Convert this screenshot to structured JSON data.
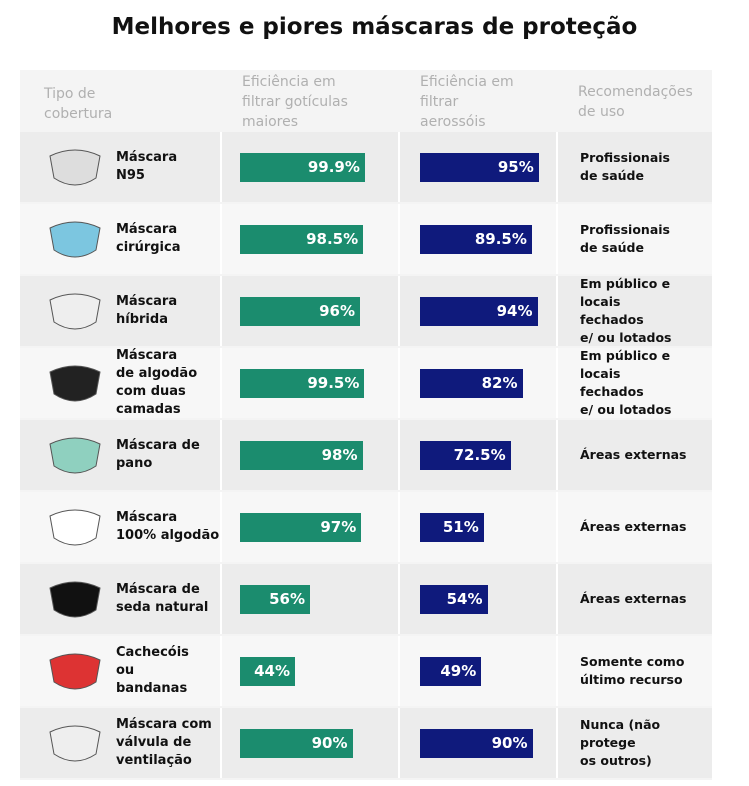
{
  "title": "Melhores e piores máscaras de proteção",
  "headers": [
    "Tipo de\ncobertura",
    "Eficiência em\nfiltrar gotículas\nmaiores",
    "Eficiência em\nfiltrar\naerossóis",
    "Recomendações\nde uso"
  ],
  "masks": [
    "Máscara\nN95",
    "Máscara\ncirúrgica",
    "Máscara\nhíbrida",
    "Máscara\nde algodão\ncom duas\ncamadas",
    "Máscara de pano",
    "Máscara\n100% algodão",
    "Máscara de\nseda natural",
    "Cachecóis\nou\nbandanas",
    "Máscara com\nválvula de\nventilação"
  ],
  "droplets": {
    "color": "#1b8c6e",
    "values": [
      99.9,
      98.5,
      96,
      99.5,
      98,
      97,
      56,
      44,
      90
    ],
    "value_labels": [
      "99.9%",
      "98.5%",
      "96%",
      "99.5%",
      "98%",
      "97%",
      "56%",
      "44%",
      "90%"
    ]
  },
  "aerosols": {
    "color": "#0f1a7c",
    "values": [
      95,
      89.5,
      94,
      82,
      72.5,
      51,
      54,
      49,
      90
    ],
    "value_labels": [
      "95%",
      "89.5%",
      "94%",
      "82%",
      "72.5%",
      "51%",
      "54%",
      "49%",
      "90%"
    ]
  },
  "recommendations": [
    "Profissionais\nde saúde",
    "Profissionais\nde saúde",
    "Em público e locais\nfechados\ne/ ou lotados",
    "Em público e locais\nfechados\ne/ ou lotados",
    "Áreas externas",
    "Áreas externas",
    "Áreas externas",
    "Somente como\núltimo recurso",
    "Nunca (não protege\nos outros)"
  ]
}
